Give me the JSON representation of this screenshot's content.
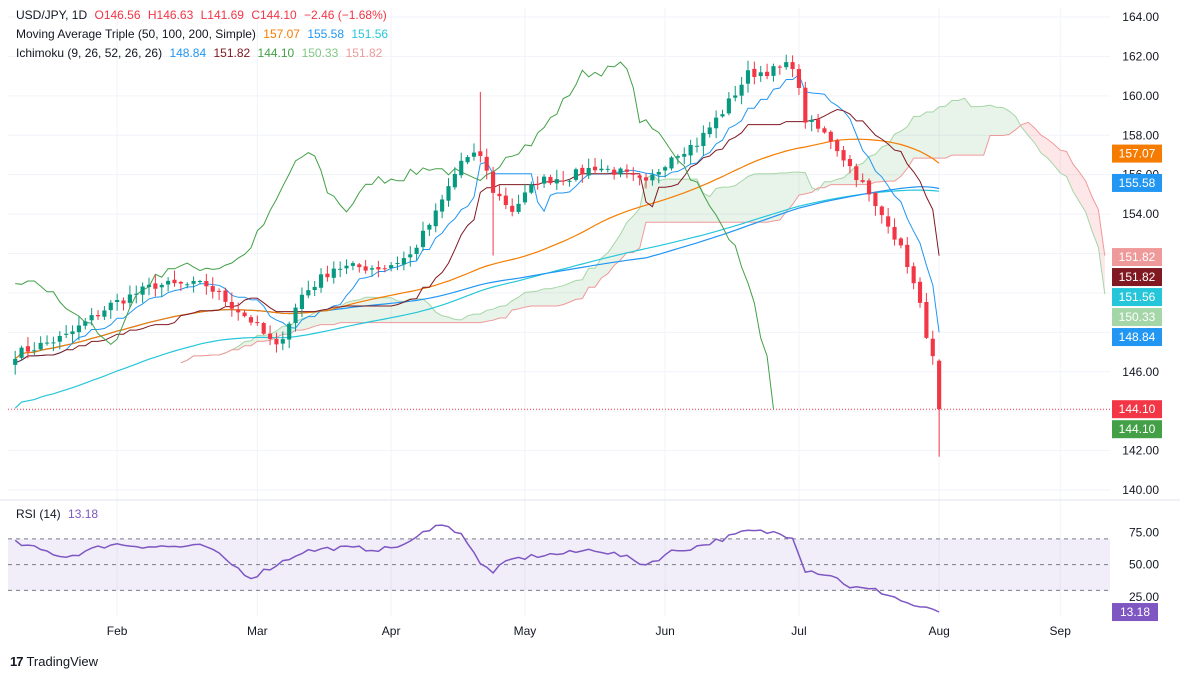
{
  "header": {
    "symbol": "USD/JPY, 1D",
    "open": "O146.56",
    "high": "H146.63",
    "low": "L141.69",
    "close": "C144.10",
    "change": "−2.46 (−1.68%)",
    "ma_label": "Moving Average Triple (50, 100, 200, Simple)",
    "ma_values": [
      "157.07",
      "155.58",
      "151.56"
    ],
    "ichi_label": "Ichimoku (9, 26, 52, 26, 26)",
    "ichi_values": [
      "148.84",
      "151.82",
      "144.10",
      "150.33",
      "151.82"
    ],
    "rsi_label": "RSI (14)",
    "rsi_value": "13.18"
  },
  "brand": "TradingView",
  "colors": {
    "up": "#089981",
    "down": "#f23645",
    "ma50": "#f57c00",
    "ma100": "#2196f3",
    "ma200": "#26c6da",
    "tenkan": "#2196f3",
    "kijun": "#801922",
    "chikou": "#43a047",
    "spanA": "#a5d6a7",
    "spanB": "#ef9a9a",
    "rsi": "#7e57c2"
  },
  "chart_data": {
    "type": "candlestick",
    "title": "USD/JPY, 1D",
    "ylim": [
      140,
      164
    ],
    "yticks": [
      "140.00",
      "142.00",
      "144.00",
      "146.00",
      "148.00",
      "150.00",
      "152.00",
      "154.00",
      "156.00",
      "158.00",
      "160.00",
      "162.00",
      "164.00"
    ],
    "xticks": [
      "Feb",
      "Mar",
      "Apr",
      "May",
      "Jun",
      "Jul",
      "Aug",
      "Sep"
    ],
    "price_labels": [
      {
        "value": 157.07,
        "text": "157.07",
        "color": "#f57c00"
      },
      {
        "value": 155.58,
        "text": "155.58",
        "color": "#2196f3"
      },
      {
        "value": 151.82,
        "text": "151.82",
        "color": "#ef9a9a"
      },
      {
        "value": 151.82,
        "text": "151.82",
        "color": "#801922"
      },
      {
        "value": 151.56,
        "text": "151.56",
        "color": "#26c6da"
      },
      {
        "value": 150.33,
        "text": "150.33",
        "color": "#a5d6a7"
      },
      {
        "value": 148.84,
        "text": "148.84",
        "color": "#2196f3"
      },
      {
        "value": 144.1,
        "text": "144.10",
        "color": "#f23645"
      },
      {
        "value": 144.1,
        "text": "144.10",
        "color": "#43a047"
      }
    ],
    "close_anchors": [
      [
        0,
        146.9
      ],
      [
        8,
        147.8
      ],
      [
        15,
        149.4
      ],
      [
        22,
        150.4
      ],
      [
        30,
        150.4
      ],
      [
        37,
        148.6
      ],
      [
        41,
        147.2
      ],
      [
        45,
        149.9
      ],
      [
        50,
        151.3
      ],
      [
        58,
        151.3
      ],
      [
        62,
        151.9
      ],
      [
        66,
        154.0
      ],
      [
        70,
        156.7
      ],
      [
        73,
        157.0
      ],
      [
        75,
        155.2
      ],
      [
        78,
        154.2
      ],
      [
        82,
        155.7
      ],
      [
        87,
        155.9
      ],
      [
        91,
        156.4
      ],
      [
        95,
        156.1
      ],
      [
        99,
        155.5
      ],
      [
        103,
        157.0
      ],
      [
        107,
        157.6
      ],
      [
        111,
        159.2
      ],
      [
        115,
        161.1
      ],
      [
        119,
        161.3
      ],
      [
        122,
        161.6
      ],
      [
        124,
        158.8
      ],
      [
        128,
        157.8
      ],
      [
        131,
        156.4
      ],
      [
        133,
        155.5
      ],
      [
        135,
        154.3
      ],
      [
        137,
        153.6
      ],
      [
        140,
        151.5
      ],
      [
        142,
        149.3
      ],
      [
        144,
        146.6
      ],
      [
        145,
        144.1
      ]
    ],
    "rsi": {
      "ylim": [
        0,
        100
      ],
      "yticks": [
        "25.00",
        "50.00",
        "75.00"
      ],
      "band": [
        30,
        70
      ],
      "current": 13.18,
      "anchors": [
        [
          0,
          67
        ],
        [
          8,
          56
        ],
        [
          15,
          66
        ],
        [
          22,
          64
        ],
        [
          30,
          64
        ],
        [
          37,
          40
        ],
        [
          41,
          50
        ],
        [
          45,
          60
        ],
        [
          50,
          63
        ],
        [
          58,
          62
        ],
        [
          62,
          67
        ],
        [
          66,
          82
        ],
        [
          70,
          75
        ],
        [
          73,
          50
        ],
        [
          75,
          45
        ],
        [
          78,
          54
        ],
        [
          82,
          57
        ],
        [
          87,
          59
        ],
        [
          91,
          62
        ],
        [
          95,
          57
        ],
        [
          99,
          50
        ],
        [
          103,
          60
        ],
        [
          107,
          64
        ],
        [
          111,
          70
        ],
        [
          115,
          76
        ],
        [
          119,
          75
        ],
        [
          122,
          72
        ],
        [
          124,
          46
        ],
        [
          128,
          42
        ],
        [
          131,
          33
        ],
        [
          133,
          31
        ],
        [
          135,
          30
        ],
        [
          137,
          27
        ],
        [
          140,
          20
        ],
        [
          142,
          17
        ],
        [
          144,
          14
        ],
        [
          145,
          13.18
        ]
      ]
    }
  }
}
